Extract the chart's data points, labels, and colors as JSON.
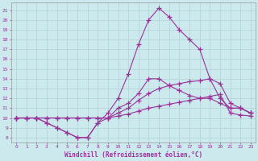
{
  "background_color": "#cce9ed",
  "line_color": "#993399",
  "grid_color": "#b8d8dc",
  "xlabel": "Windchill (Refroidissement éolien,°C)",
  "xlim": [
    -0.5,
    23.5
  ],
  "ylim": [
    7.5,
    21.8
  ],
  "yticks": [
    8,
    9,
    10,
    11,
    12,
    13,
    14,
    15,
    16,
    17,
    18,
    19,
    20,
    21
  ],
  "xticks": [
    0,
    1,
    2,
    3,
    4,
    5,
    6,
    7,
    8,
    9,
    10,
    11,
    12,
    13,
    14,
    15,
    16,
    17,
    18,
    19,
    20,
    21,
    22,
    23
  ],
  "lines": [
    {
      "x": [
        0,
        1,
        2,
        3,
        4,
        5,
        6,
        7,
        8,
        9,
        10,
        11,
        12,
        13,
        14,
        15,
        16,
        17,
        18,
        19,
        20,
        21,
        22,
        23
      ],
      "y": [
        10.0,
        10.0,
        10.0,
        10.0,
        10.0,
        10.0,
        10.0,
        10.0,
        10.0,
        10.0,
        10.2,
        10.4,
        10.7,
        11.0,
        11.2,
        11.4,
        11.6,
        11.8,
        12.0,
        12.2,
        12.4,
        10.5,
        10.3,
        10.2
      ]
    },
    {
      "x": [
        0,
        1,
        2,
        3,
        4,
        5,
        6,
        7,
        8,
        9,
        10,
        11,
        12,
        13,
        14,
        15,
        16,
        17,
        18,
        19,
        20,
        21,
        22,
        23
      ],
      "y": [
        10.0,
        10.0,
        10.0,
        10.0,
        10.0,
        10.0,
        10.0,
        10.0,
        10.0,
        10.0,
        10.5,
        11.0,
        11.8,
        12.5,
        13.0,
        13.3,
        13.5,
        13.7,
        13.8,
        14.0,
        13.5,
        11.5,
        11.0,
        10.5
      ]
    },
    {
      "x": [
        0,
        1,
        2,
        3,
        4,
        5,
        6,
        7,
        8,
        9,
        10,
        11,
        12,
        13,
        14,
        15,
        16,
        17,
        18,
        19,
        20,
        21,
        22,
        23
      ],
      "y": [
        10.0,
        10.0,
        10.0,
        9.5,
        9.0,
        8.5,
        8.0,
        8.0,
        9.5,
        10.0,
        11.0,
        11.5,
        12.5,
        14.0,
        14.0,
        13.3,
        12.8,
        12.3,
        12.0,
        12.0,
        11.5,
        11.0,
        11.0,
        10.5
      ]
    },
    {
      "x": [
        0,
        1,
        2,
        3,
        4,
        5,
        6,
        7,
        8,
        9,
        10,
        11,
        12,
        13,
        14,
        15,
        16,
        17,
        18,
        19,
        20,
        21,
        22,
        23
      ],
      "y": [
        10.0,
        10.0,
        10.0,
        9.5,
        9.0,
        8.5,
        8.0,
        8.0,
        9.5,
        10.5,
        12.0,
        14.5,
        17.5,
        20.0,
        21.2,
        20.3,
        19.0,
        18.0,
        17.0,
        14.0,
        12.0,
        11.0,
        11.0,
        10.5
      ]
    }
  ]
}
